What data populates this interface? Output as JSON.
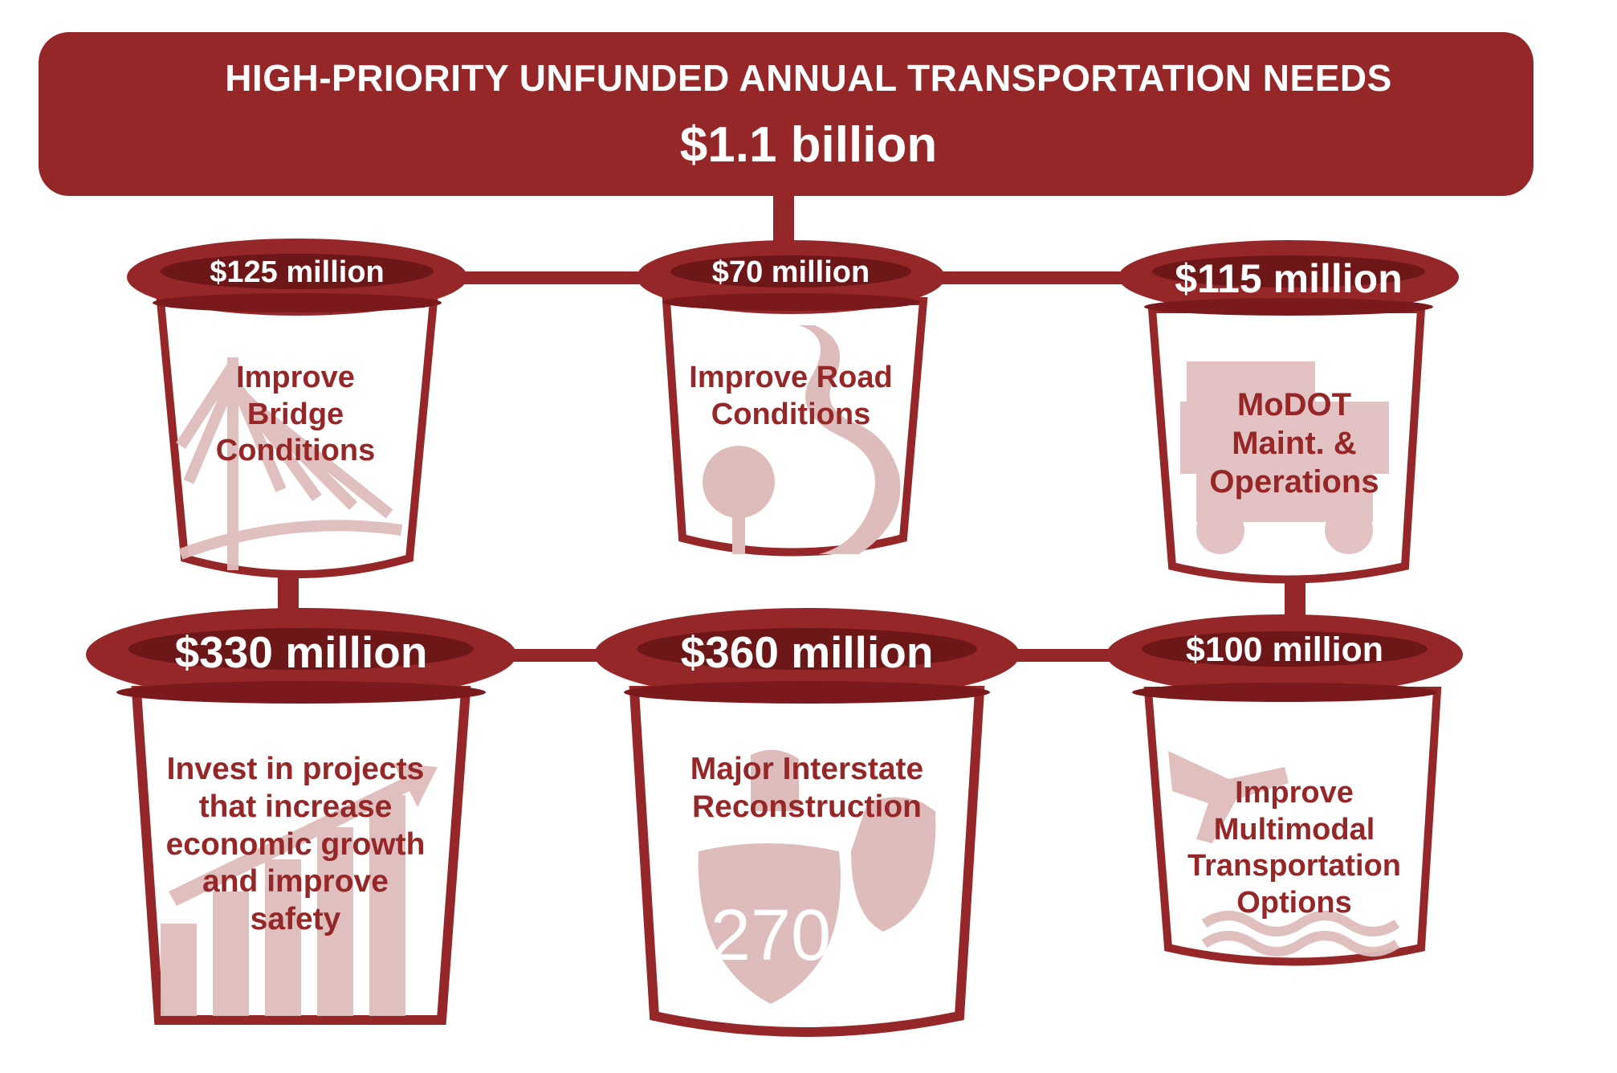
{
  "header": {
    "title": "HIGH-PRIORITY UNFUNDED ANNUAL TRANSPORTATION NEEDS",
    "total": "$1.1 billion"
  },
  "buckets": [
    {
      "amount": "$125 million",
      "label": "Improve Bridge Conditions",
      "icon": "bridge-icon"
    },
    {
      "amount": "$70 million",
      "label": "Improve Road Conditions",
      "icon": "road-icon"
    },
    {
      "amount": "$115 million",
      "label": "MoDOT Maint. & Operations",
      "icon": "maintenance-vehicle-icon"
    },
    {
      "amount": "$330 million",
      "label": "Invest in projects that increase economic growth and improve safety",
      "icon": "growth-chart-icon"
    },
    {
      "amount": "$360 million",
      "label": "Major Interstate Reconstruction",
      "icon": "interstate-shield-icon",
      "shield_number": "270"
    },
    {
      "amount": "$100 million",
      "label": "Improve Multimodal Transportation Options",
      "icon": "multimodal-icon"
    }
  ],
  "colors": {
    "primary": "#962729",
    "icon_tint": "#dfbcbc",
    "rim_inner": "#6e1719"
  }
}
